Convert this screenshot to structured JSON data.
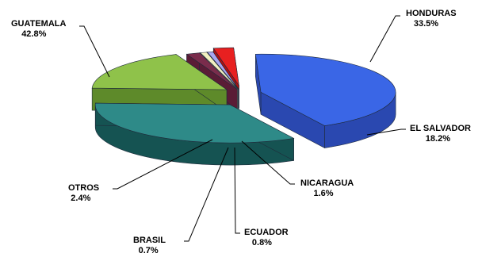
{
  "chart_data": {
    "type": "pie",
    "title": "",
    "slices": [
      {
        "label": "GUATEMALA",
        "value": 42.8,
        "value_label": "42.8%",
        "color_top": "#3a66e6",
        "color_side": "#2a48b0"
      },
      {
        "label": "HONDURAS",
        "value": 33.5,
        "value_label": "33.5%",
        "color_top": "#2e8a88",
        "color_side": "#155352"
      },
      {
        "label": "EL SALVADOR",
        "value": 18.2,
        "value_label": "18.2%",
        "color_top": "#8fc24a",
        "color_side": "#5e8a2a"
      },
      {
        "label": "NICARAGUA",
        "value": 1.6,
        "value_label": "1.6%",
        "color_top": "#7a2c4c",
        "color_side": "#5a1c36"
      },
      {
        "label": "ECUADOR",
        "value": 0.8,
        "value_label": "0.8%",
        "color_top": "#f2f0c0",
        "color_side": "#c8c690"
      },
      {
        "label": "BRASIL",
        "value": 0.7,
        "value_label": "0.7%",
        "color_top": "#a9a6f0",
        "color_side": "#8783d0"
      },
      {
        "label": "OTROS",
        "value": 2.4,
        "value_label": "2.4%",
        "color_top": "#e82020",
        "color_side": "#b01010"
      }
    ],
    "style": "3d-exploded",
    "legend": "none"
  }
}
